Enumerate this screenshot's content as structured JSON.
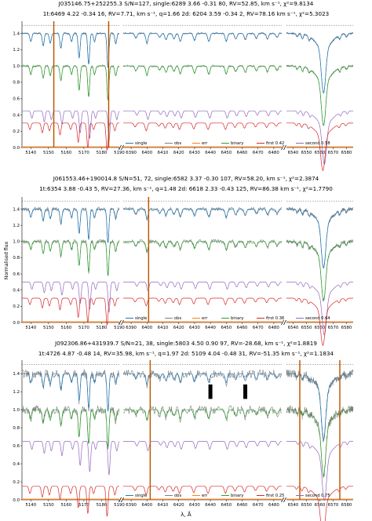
{
  "figure": {
    "xlabel": "λ, Å",
    "ylabel": "Normalised flux"
  },
  "legend_labels": [
    "single",
    "obs",
    "err",
    "binary"
  ],
  "colors": {
    "single": "#1f77b4",
    "obs": "#7f7f7f",
    "err": "#ff7f0e",
    "binary": "#2ca02c",
    "first": "#d62728",
    "second": "#9467bd",
    "marker": "#8c4a1a",
    "black_bar": "#000000"
  },
  "chart_data": [
    {
      "type": "line",
      "title_line1": "J035146.75+252255.3 S/N=127,     single:6289 3.66 -0.31 80, RV=52.85, km s⁻¹, χ²=9.8134",
      "title_line2": "1t:6469 4.22 -0.34 16, RV=7.71, km s⁻¹, q=1.66 2d: 6204 3.59 -0.34 2, RV=78.16 km s⁻¹, χ²=5.3023",
      "legend_first": "first 0.42",
      "legend_second": "second 0.58",
      "ylim": [
        0,
        1.55
      ],
      "yticks": [
        "0.0",
        "0.2",
        "0.4",
        "0.6",
        "0.8",
        "1.0",
        "1.2",
        "1.4"
      ],
      "segments": [
        {
          "xlim": [
            5135,
            5190
          ],
          "xticks": [
            "5140",
            "5150",
            "5160",
            "5170",
            "5180",
            "5190"
          ]
        },
        {
          "xlim": [
            6385,
            6485
          ],
          "xticks": [
            "6390",
            "6400",
            "6410",
            "6420",
            "6430",
            "6440",
            "6450",
            "6460",
            "6470",
            "6480"
          ]
        },
        {
          "xlim": [
            6535,
            6585
          ],
          "xticks": [
            "6540",
            "6550",
            "6560",
            "6570",
            "6580"
          ]
        }
      ],
      "offsets": {
        "single": 1.4,
        "binary": 1.0,
        "second": 0.45,
        "first": 0.3
      },
      "markers": [
        5153,
        5184
      ]
    },
    {
      "type": "line",
      "title_line1": "J061553.46+190014.8 S/N=51, 72, single:6582 3.37 -0.30 107, RV=58.20, km s⁻¹, χ²=2.3874",
      "title_line2": "1t:6354 3.88 -0.43 5, RV=27.36, km s⁻¹, q=1.48 2d: 6618 2.33 -0.43 125, RV=86.38 km s⁻¹, χ²=1.7790",
      "legend_first": "first 0.36",
      "legend_second": "second 0.64",
      "ylim": [
        0,
        1.55
      ],
      "yticks": [
        "0.0",
        "0.2",
        "0.4",
        "0.6",
        "0.8",
        "1.0",
        "1.2",
        "1.4"
      ],
      "segments": [
        {
          "xlim": [
            5135,
            5190
          ],
          "xticks": [
            "5140",
            "5150",
            "5160",
            "5170",
            "5180",
            "5190"
          ]
        },
        {
          "xlim": [
            6385,
            6485
          ],
          "xticks": [
            "6390",
            "6400",
            "6410",
            "6420",
            "6430",
            "6440",
            "6450",
            "6460",
            "6470",
            "6480"
          ]
        },
        {
          "xlim": [
            6535,
            6585
          ],
          "xticks": [
            "6540",
            "6550",
            "6560",
            "6570",
            "6580"
          ]
        }
      ],
      "offsets": {
        "single": 1.4,
        "binary": 1.0,
        "second": 0.5,
        "first": 0.3
      },
      "markers": [
        6401
      ]
    },
    {
      "type": "line",
      "title_line1": "J092306.86+431939.7 S/N=21, 38, single:5803 4.50 0.90 97, RV=-28.68, km s⁻¹, χ²=1.8819",
      "title_line2": "1t:4726 4.87 -0.48 14, RV=35.98, km s⁻¹, q=1.97 2d: 5109 4.04 -0.48 31, RV=-51.35 km s⁻¹, χ²=1.1834",
      "legend_first": "first 0.25",
      "legend_second": "second 0.75",
      "ylim": [
        0,
        1.55
      ],
      "yticks": [
        "0.0",
        "0.2",
        "0.4",
        "0.6",
        "0.8",
        "1.0",
        "1.2",
        "1.4"
      ],
      "segments": [
        {
          "xlim": [
            5135,
            5190
          ],
          "xticks": [
            "5140",
            "5150",
            "5160",
            "5170",
            "5180",
            "5190"
          ]
        },
        {
          "xlim": [
            6385,
            6485
          ],
          "xticks": [
            "6390",
            "6400",
            "6410",
            "6420",
            "6430",
            "6440",
            "6450",
            "6460",
            "6470",
            "6480"
          ]
        },
        {
          "xlim": [
            6535,
            6585
          ],
          "xticks": [
            "6540",
            "6550",
            "6560",
            "6570",
            "6580"
          ]
        }
      ],
      "offsets": {
        "single": 1.4,
        "binary": 1.0,
        "second": 0.65,
        "first": 0.15
      },
      "markers": [
        6402,
        6545,
        6575
      ],
      "bars": [
        6440,
        6462
      ]
    }
  ]
}
